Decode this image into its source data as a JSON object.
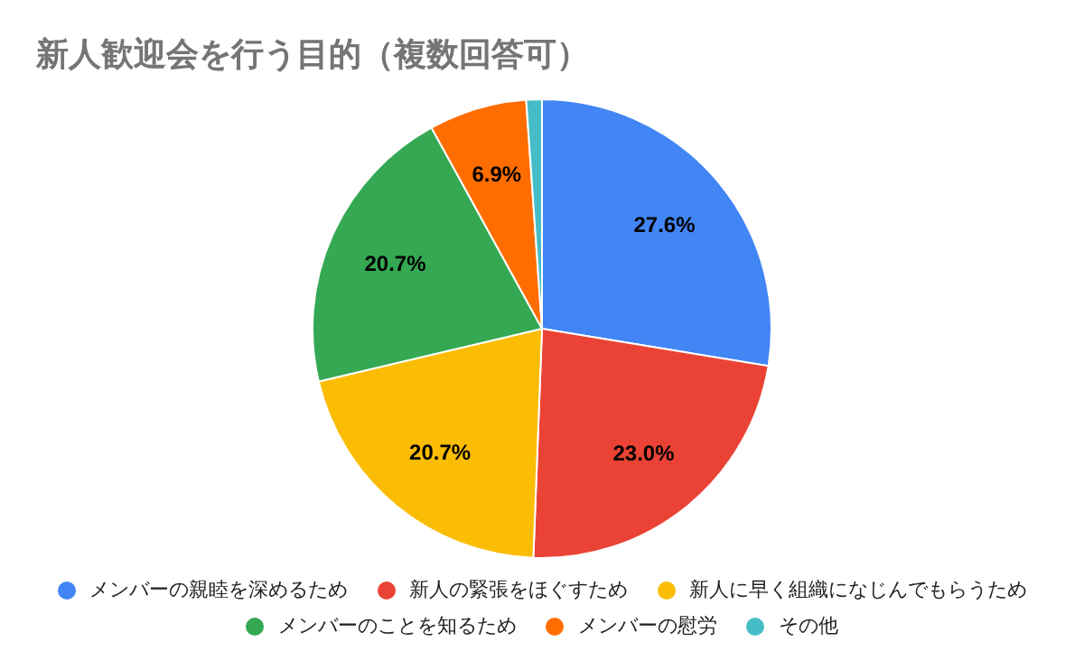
{
  "chart_data": {
    "type": "pie",
    "title": "新人歓迎会を行う目的（複数回答可）",
    "categories": [
      "メンバーの親睦を深めるため",
      "新人の緊張をほぐすため",
      "新人に早く組織になじんでもらうため",
      "メンバーのことを知るため",
      "メンバーの慰労",
      "その他"
    ],
    "values": [
      27.6,
      23.0,
      20.7,
      20.7,
      6.9,
      1.1
    ],
    "colors": [
      "#4285f4",
      "#ea4335",
      "#fbbc04",
      "#34a853",
      "#ff6d01",
      "#46bdc6"
    ],
    "value_labels": [
      "27.6%",
      "23.0%",
      "20.7%",
      "20.7%",
      "6.9%",
      null
    ],
    "legend": "bottom"
  }
}
